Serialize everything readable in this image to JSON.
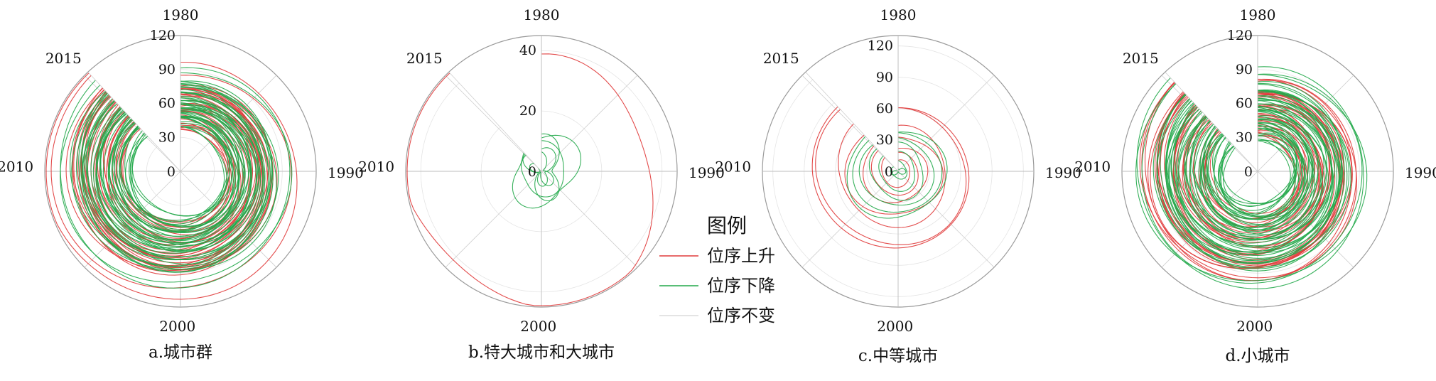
{
  "legend": {
    "title": "图例",
    "items": [
      {
        "label": "位序上升",
        "color": "#e03a3a"
      },
      {
        "label": "位序下降",
        "color": "#22a84a"
      },
      {
        "label": "位序不变",
        "color": "#c8c8c8"
      }
    ]
  },
  "chart_data": [
    {
      "type": "polar-spiral",
      "title": "a.城市群",
      "time_labels": [
        "1980",
        "1990",
        "2000",
        "2010",
        "2015"
      ],
      "time_values": [
        1980,
        1990,
        2000,
        2010,
        2015
      ],
      "r_ticks": [
        "0",
        "30",
        "60",
        "90",
        "120"
      ],
      "r_max": 120,
      "series": [
        {
          "color_key": "up",
          "count": 34,
          "start_rank_range": [
            36,
            95
          ]
        },
        {
          "color_key": "down",
          "count": 46,
          "start_rank_range": [
            38,
            95
          ]
        }
      ]
    },
    {
      "type": "polar-spiral",
      "title": "b.特大城市和大城市",
      "time_labels": [
        "1980",
        "1990",
        "2000",
        "2010",
        "2015"
      ],
      "time_values": [
        1980,
        1990,
        2000,
        2010,
        2015
      ],
      "r_ticks": [
        "0",
        "20",
        "40"
      ],
      "r_max": 45,
      "series": [
        {
          "color_key": "up",
          "count": 1,
          "start_rank_range": [
            35,
            35
          ]
        },
        {
          "color_key": "down",
          "count": 5,
          "start_rank_range": [
            4,
            15
          ]
        }
      ]
    },
    {
      "type": "polar-spiral",
      "title": "c.中等城市",
      "time_labels": [
        "1980",
        "1990",
        "2000",
        "2010",
        "2015"
      ],
      "time_values": [
        1980,
        1990,
        2000,
        2010,
        2015
      ],
      "r_ticks": [
        "0",
        "30",
        "60",
        "90",
        "120"
      ],
      "r_max": 130,
      "series": [
        {
          "color_key": "up",
          "count": 7,
          "start_rank_range": [
            10,
            76
          ]
        },
        {
          "color_key": "down",
          "count": 7,
          "start_rank_range": [
            5,
            46
          ]
        }
      ]
    },
    {
      "type": "polar-spiral",
      "title": "d.小城市",
      "time_labels": [
        "1980",
        "1990",
        "2000",
        "2010",
        "2015"
      ],
      "time_values": [
        1980,
        1990,
        2000,
        2010,
        2015
      ],
      "r_ticks": [
        "0",
        "30",
        "60",
        "90",
        "120"
      ],
      "r_max": 120,
      "series": [
        {
          "color_key": "up",
          "count": 34,
          "start_rank_range": [
            30,
            95
          ]
        },
        {
          "color_key": "down",
          "count": 52,
          "start_rank_range": [
            28,
            95
          ]
        }
      ]
    }
  ]
}
